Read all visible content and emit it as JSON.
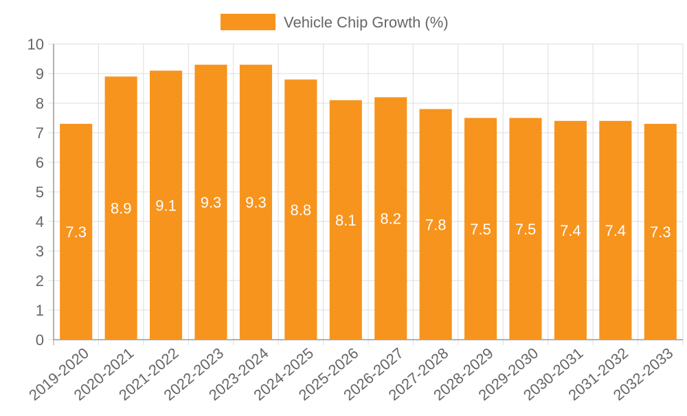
{
  "chart_data": {
    "type": "bar",
    "categories": [
      "2019-2020",
      "2020-2021",
      "2021-2022",
      "2022-2023",
      "2023-2024",
      "2024-2025",
      "2025-2026",
      "2026-2027",
      "2027-2028",
      "2028-2029",
      "2029-2030",
      "2030-2031",
      "2031-2032",
      "2032-2033"
    ],
    "series": [
      {
        "name": "Vehicle Chip Growth (%)",
        "values": [
          7.3,
          8.9,
          9.1,
          9.3,
          9.3,
          8.8,
          8.1,
          8.2,
          7.8,
          7.5,
          7.5,
          7.4,
          7.4,
          7.3
        ],
        "color": "#f7941d"
      }
    ],
    "ylim": [
      0,
      10
    ],
    "yticks": [
      0,
      1,
      2,
      3,
      4,
      5,
      6,
      7,
      8,
      9,
      10
    ],
    "grid": true,
    "legend_position": "top-center",
    "data_labels": true,
    "data_label_color": "#ffffff",
    "grid_color": "#dddddd",
    "axis_color": "#999999",
    "tick_label_color": "#666666"
  }
}
